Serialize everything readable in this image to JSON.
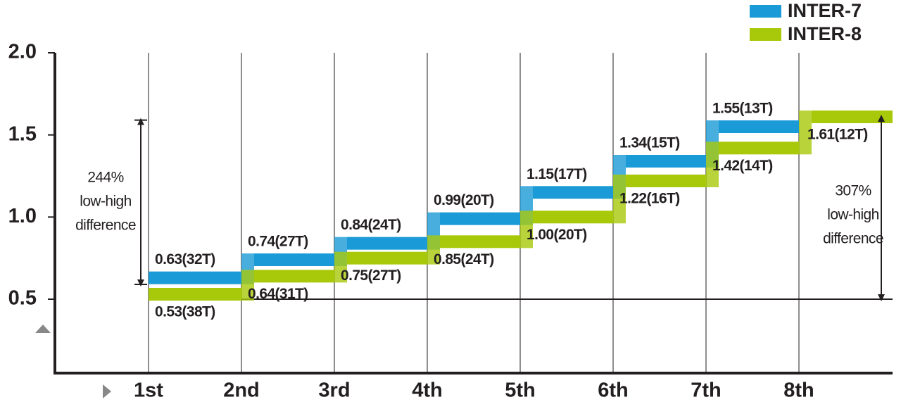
{
  "chart_data": {
    "type": "step",
    "categories": [
      "1st",
      "2nd",
      "3rd",
      "4th",
      "5th",
      "6th",
      "7th",
      "8th"
    ],
    "series": [
      {
        "name": "INTER-7",
        "color": "#1a9ad6",
        "values": [
          0.63,
          0.74,
          0.84,
          0.99,
          1.15,
          1.34,
          1.55,
          null
        ],
        "value_labels": [
          "0.63(32T)",
          "0.74(27T)",
          "0.84(24T)",
          "0.99(20T)",
          "1.15(17T)",
          "1.34(15T)",
          "1.55(13T)",
          null
        ]
      },
      {
        "name": "INTER-8",
        "color": "#a8c90a",
        "values": [
          0.53,
          0.64,
          0.75,
          0.85,
          1,
          1.22,
          1.42,
          1.61
        ],
        "value_labels": [
          "0.53(38T)",
          "0.64(31T)",
          "0.75(27T)",
          "0.85(24T)",
          "1.00(20T)",
          "1.22(16T)",
          "1.42(14T)",
          "1.61(12T)"
        ]
      }
    ],
    "ylim": [
      0.05,
      2.0
    ],
    "yticks": [
      0.5,
      {
        "value": 1,
        "label": "1.0"
      },
      1.5,
      {
        "value": 2,
        "label": "2.0"
      }
    ],
    "annotations": [
      {
        "lines": [
          "244%",
          "low-high",
          "difference"
        ]
      },
      {
        "lines": [
          "307%",
          "low-high",
          "difference"
        ]
      }
    ],
    "legend": "top-right",
    "grid": true
  }
}
